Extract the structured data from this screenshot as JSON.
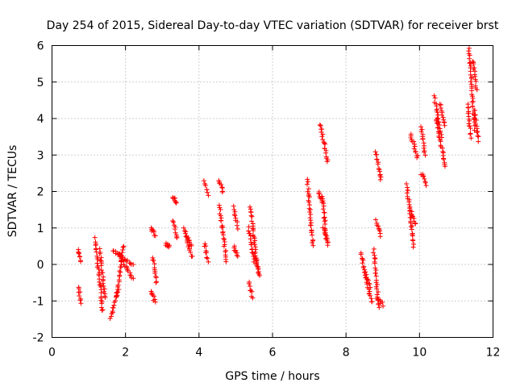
{
  "chart_data": {
    "type": "scatter",
    "title": "Day 254 of 2015, Sidereal Day-to-day VTEC variation (SDTVAR) for receiver brst",
    "xlabel": "GPS time / hours",
    "ylabel": "SDTVAR / TECUs",
    "xlim": [
      0,
      12
    ],
    "ylim": [
      -2,
      6
    ],
    "xticks": [
      "0",
      "2",
      "4",
      "6",
      "8",
      "10",
      "12"
    ],
    "yticks": [
      "-2",
      "-1",
      "0",
      "1",
      "2",
      "3",
      "4",
      "5",
      "6"
    ],
    "grid": true,
    "marker": "plus",
    "colors": {
      "points": "#ff0000",
      "grid": "#a0a0a0",
      "axes": "#000000"
    },
    "segments": [
      [
        0.72,
        0.78,
        0.4,
        0.1
      ],
      [
        0.72,
        0.78,
        -0.6,
        -1.05
      ],
      [
        1.18,
        1.38,
        0.7,
        -1.3
      ],
      [
        1.3,
        1.45,
        0.4,
        -0.9
      ],
      [
        1.6,
        1.8,
        -1.5,
        -0.7
      ],
      [
        1.75,
        1.95,
        -0.9,
        0.5
      ],
      [
        1.65,
        2.2,
        0.4,
        0.0
      ],
      [
        1.8,
        2.2,
        0.3,
        -0.4
      ],
      [
        2.7,
        2.8,
        1.0,
        0.8
      ],
      [
        2.75,
        2.85,
        0.2,
        -0.5
      ],
      [
        2.7,
        2.8,
        -0.7,
        -1.05
      ],
      [
        3.1,
        3.2,
        0.55,
        0.5
      ],
      [
        3.3,
        3.4,
        1.85,
        1.7
      ],
      [
        3.3,
        3.4,
        1.2,
        0.7
      ],
      [
        3.6,
        3.8,
        1.0,
        0.2
      ],
      [
        3.65,
        3.8,
        0.8,
        0.5
      ],
      [
        4.15,
        4.25,
        2.3,
        1.9
      ],
      [
        4.15,
        4.25,
        0.6,
        0.1
      ],
      [
        4.55,
        4.65,
        2.3,
        2.0
      ],
      [
        4.55,
        4.75,
        1.6,
        0.1
      ],
      [
        4.95,
        5.05,
        1.6,
        1.0
      ],
      [
        4.95,
        5.05,
        0.5,
        0.2
      ],
      [
        5.35,
        5.45,
        -0.5,
        -0.9
      ],
      [
        5.35,
        5.5,
        1.0,
        0.1
      ],
      [
        5.4,
        5.6,
        1.6,
        -0.2
      ],
      [
        5.5,
        5.65,
        0.3,
        -0.3
      ],
      [
        6.95,
        7.1,
        2.3,
        0.5
      ],
      [
        7.25,
        7.35,
        2.0,
        1.7
      ],
      [
        7.3,
        7.5,
        3.85,
        2.8
      ],
      [
        7.35,
        7.5,
        1.9,
        0.5
      ],
      [
        7.38,
        7.48,
        1.0,
        0.7
      ],
      [
        8.4,
        8.7,
        0.3,
        -1.05
      ],
      [
        8.5,
        8.65,
        -0.2,
        -0.6
      ],
      [
        8.75,
        8.9,
        0.4,
        -1.2
      ],
      [
        8.8,
        8.95,
        1.2,
        0.8
      ],
      [
        8.85,
        9.0,
        -0.9,
        -1.1
      ],
      [
        8.8,
        8.95,
        3.1,
        2.3
      ],
      [
        9.65,
        9.85,
        2.2,
        0.5
      ],
      [
        9.75,
        9.9,
        1.5,
        1.1
      ],
      [
        9.75,
        9.95,
        3.6,
        2.9
      ],
      [
        10.05,
        10.15,
        3.8,
        3.0
      ],
      [
        10.05,
        10.2,
        2.5,
        2.2
      ],
      [
        10.4,
        10.6,
        4.6,
        3.5
      ],
      [
        10.45,
        10.7,
        4.0,
        2.7
      ],
      [
        10.55,
        10.7,
        4.4,
        3.8
      ],
      [
        11.3,
        11.4,
        4.4,
        3.5
      ],
      [
        11.35,
        11.5,
        5.9,
        3.7
      ],
      [
        11.45,
        11.55,
        5.6,
        4.8
      ],
      [
        11.5,
        11.6,
        4.2,
        3.4
      ]
    ]
  }
}
